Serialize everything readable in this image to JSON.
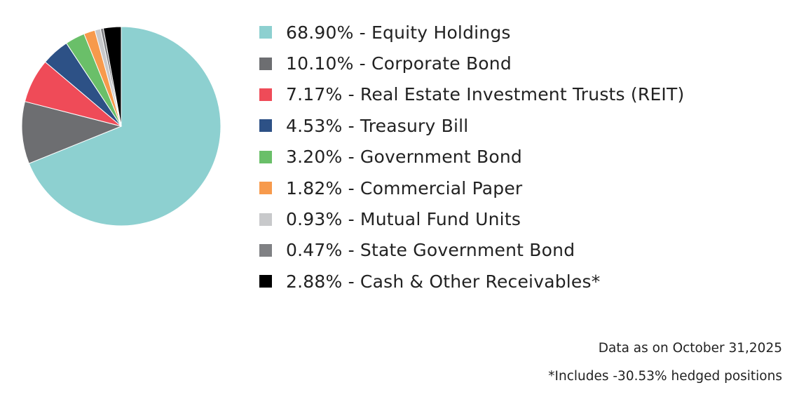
{
  "chart_data": {
    "type": "pie",
    "start": "12 o'clock, clockwise",
    "slices": [
      {
        "value": 68.9,
        "percent_label": "68.90%",
        "label": "Equity Holdings",
        "color": "#8dd0d0"
      },
      {
        "value": 10.1,
        "percent_label": "10.10%",
        "label": "Corporate Bond",
        "color": "#6d6e71"
      },
      {
        "value": 7.17,
        "percent_label": "7.17%",
        "label": "Real Estate Investment Trusts (REIT)",
        "color": "#ef4b58"
      },
      {
        "value": 4.53,
        "percent_label": "4.53%",
        "label": "Treasury Bill",
        "color": "#2d5186"
      },
      {
        "value": 3.2,
        "percent_label": "3.20%",
        "label": "Government Bond",
        "color": "#6abf69"
      },
      {
        "value": 1.82,
        "percent_label": "1.82%",
        "label": "Commercial Paper",
        "color": "#f79a4c"
      },
      {
        "value": 0.93,
        "percent_label": "0.93%",
        "label": "Mutual Fund Units",
        "color": "#c8c9cb"
      },
      {
        "value": 0.47,
        "percent_label": "0.47%",
        "label": "State Government Bond",
        "color": "#808184"
      },
      {
        "value": 2.88,
        "percent_label": "2.88%",
        "label": "Cash & Other Receivables*",
        "color": "#000000"
      }
    ],
    "legend_placement": "right"
  },
  "notes": {
    "date": "Data as on October 31,2025",
    "hedge": "*Includes -30.53% hedged positions"
  }
}
